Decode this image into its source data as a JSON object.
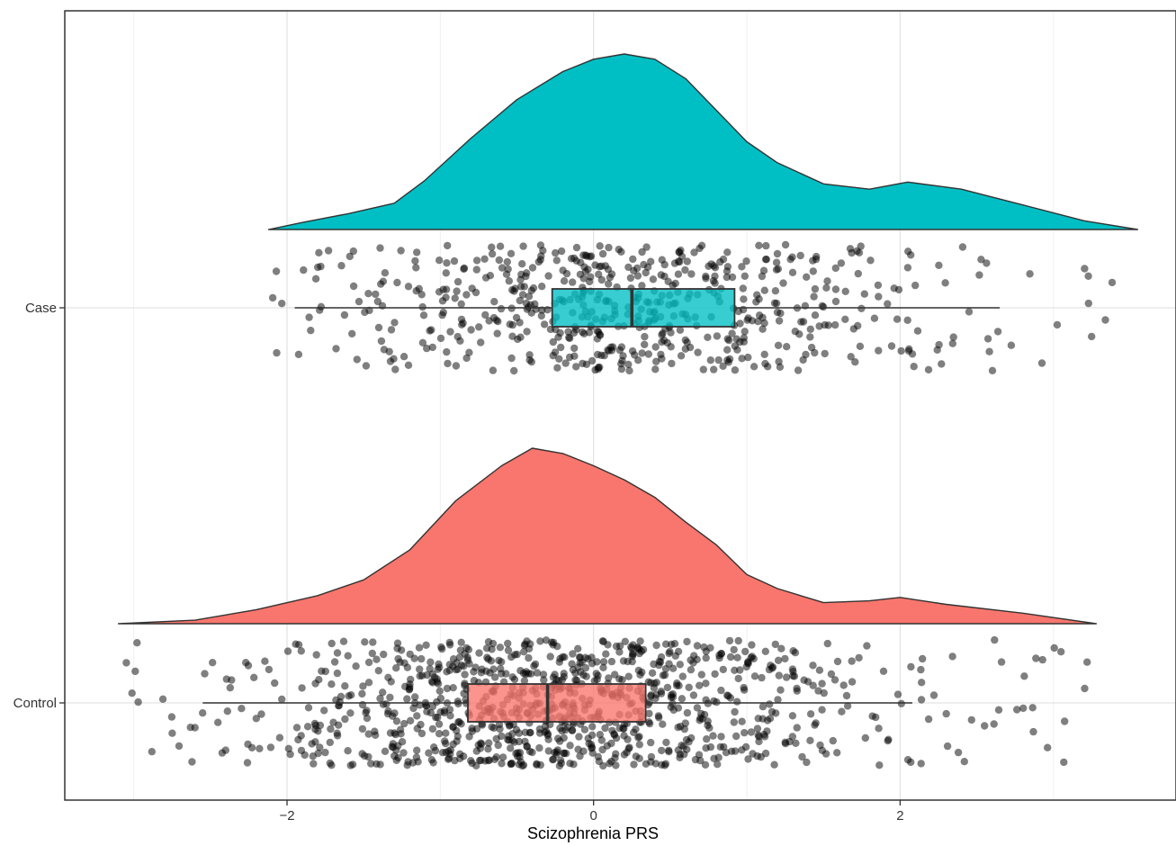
{
  "chart_data": {
    "type": "raincloud",
    "title": "",
    "xlabel": "Scizophrenia PRS",
    "ylabel": "",
    "xlim": [
      -3.45,
      3.8
    ],
    "x_ticks": [
      -2,
      0,
      2
    ],
    "x_tick_labels": [
      "−2",
      "0",
      "2"
    ],
    "grid": true,
    "legend": "none",
    "groups": [
      {
        "label": "Case",
        "color": "#00BFC4",
        "box": {
          "q1": -0.27,
          "median": 0.25,
          "q3": 0.92,
          "whisker_low": -1.95,
          "whisker_high": 2.65
        },
        "density_range": [
          -2.12,
          3.55
        ],
        "density": [
          [
            -2.12,
            0.0
          ],
          [
            -1.9,
            0.04
          ],
          [
            -1.6,
            0.09
          ],
          [
            -1.3,
            0.15
          ],
          [
            -1.1,
            0.28
          ],
          [
            -0.8,
            0.52
          ],
          [
            -0.5,
            0.74
          ],
          [
            -0.2,
            0.9
          ],
          [
            0.0,
            0.97
          ],
          [
            0.2,
            1.0
          ],
          [
            0.4,
            0.97
          ],
          [
            0.6,
            0.86
          ],
          [
            0.8,
            0.68
          ],
          [
            1.0,
            0.5
          ],
          [
            1.2,
            0.38
          ],
          [
            1.5,
            0.26
          ],
          [
            1.8,
            0.23
          ],
          [
            2.05,
            0.27
          ],
          [
            2.4,
            0.23
          ],
          [
            2.8,
            0.14
          ],
          [
            3.2,
            0.05
          ],
          [
            3.55,
            0.0
          ]
        ],
        "points_range": [
          -2.15,
          3.55
        ],
        "points_count": 600,
        "points_center": 0.25,
        "points_spread": 1.0
      },
      {
        "label": "Control",
        "color": "#F8766D",
        "box": {
          "q1": -0.82,
          "median": -0.3,
          "q3": 0.34,
          "whisker_low": -2.55,
          "whisker_high": 2.08
        },
        "density_range": [
          -3.1,
          3.28
        ],
        "density": [
          [
            -3.1,
            0.0
          ],
          [
            -2.6,
            0.02
          ],
          [
            -2.2,
            0.08
          ],
          [
            -1.8,
            0.16
          ],
          [
            -1.5,
            0.25
          ],
          [
            -1.2,
            0.42
          ],
          [
            -0.9,
            0.7
          ],
          [
            -0.6,
            0.9
          ],
          [
            -0.4,
            1.0
          ],
          [
            -0.2,
            0.97
          ],
          [
            0.0,
            0.9
          ],
          [
            0.2,
            0.82
          ],
          [
            0.4,
            0.72
          ],
          [
            0.6,
            0.58
          ],
          [
            0.8,
            0.45
          ],
          [
            1.0,
            0.28
          ],
          [
            1.2,
            0.2
          ],
          [
            1.5,
            0.12
          ],
          [
            1.8,
            0.13
          ],
          [
            2.0,
            0.15
          ],
          [
            2.3,
            0.11
          ],
          [
            2.8,
            0.06
          ],
          [
            3.28,
            0.0
          ]
        ],
        "points_range": [
          -3.1,
          3.28
        ],
        "points_count": 1000,
        "points_center": -0.3,
        "points_spread": 0.95
      }
    ]
  }
}
